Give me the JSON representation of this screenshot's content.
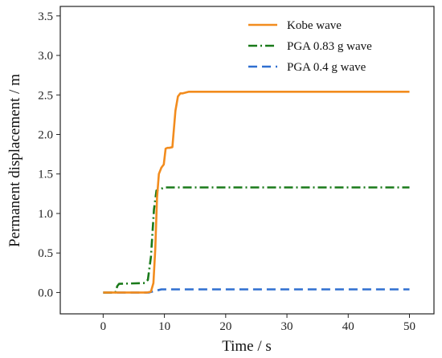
{
  "chart_data": {
    "type": "line",
    "xlabel": "Time / s",
    "ylabel": "Permanent displacement / m",
    "xlim": [
      -7,
      54
    ],
    "ylim": [
      -0.27,
      3.62
    ],
    "xticks": [
      0,
      10,
      20,
      30,
      40,
      50
    ],
    "yticks": [
      0.0,
      0.5,
      1.0,
      1.5,
      2.0,
      2.5,
      3.0,
      3.5
    ],
    "grid": false,
    "legend_position": "top-right",
    "series": [
      {
        "name": "Kobe wave",
        "color": "#f28c1e",
        "style": "solid",
        "x": [
          0,
          7.2,
          7.8,
          8.2,
          8.5,
          8.8,
          9.1,
          9.5,
          9.9,
          10.2,
          10.5,
          10.8,
          11.3,
          11.8,
          12.2,
          12.6,
          13.0,
          14.0,
          15.0,
          50
        ],
        "y": [
          0,
          0,
          0.01,
          0.12,
          0.55,
          1.2,
          1.5,
          1.58,
          1.62,
          1.82,
          1.83,
          1.83,
          1.84,
          2.3,
          2.48,
          2.52,
          2.52,
          2.54,
          2.54,
          2.54
        ]
      },
      {
        "name": "PGA 0.83 g wave",
        "color": "#1a7a1a",
        "style": "dashdot",
        "x": [
          0,
          2.0,
          2.3,
          2.6,
          6.8,
          7.3,
          7.8,
          8.3,
          8.7,
          9.1,
          10.0,
          50
        ],
        "y": [
          0,
          0,
          0.08,
          0.11,
          0.12,
          0.16,
          0.45,
          1.05,
          1.29,
          1.3,
          1.33,
          1.33
        ]
      },
      {
        "name": "PGA 0.4 g wave",
        "color": "#2f6fd0",
        "style": "dashed",
        "x": [
          0,
          7.5,
          8.5,
          9.5,
          50
        ],
        "y": [
          0,
          0,
          0.02,
          0.04,
          0.04
        ]
      }
    ]
  }
}
